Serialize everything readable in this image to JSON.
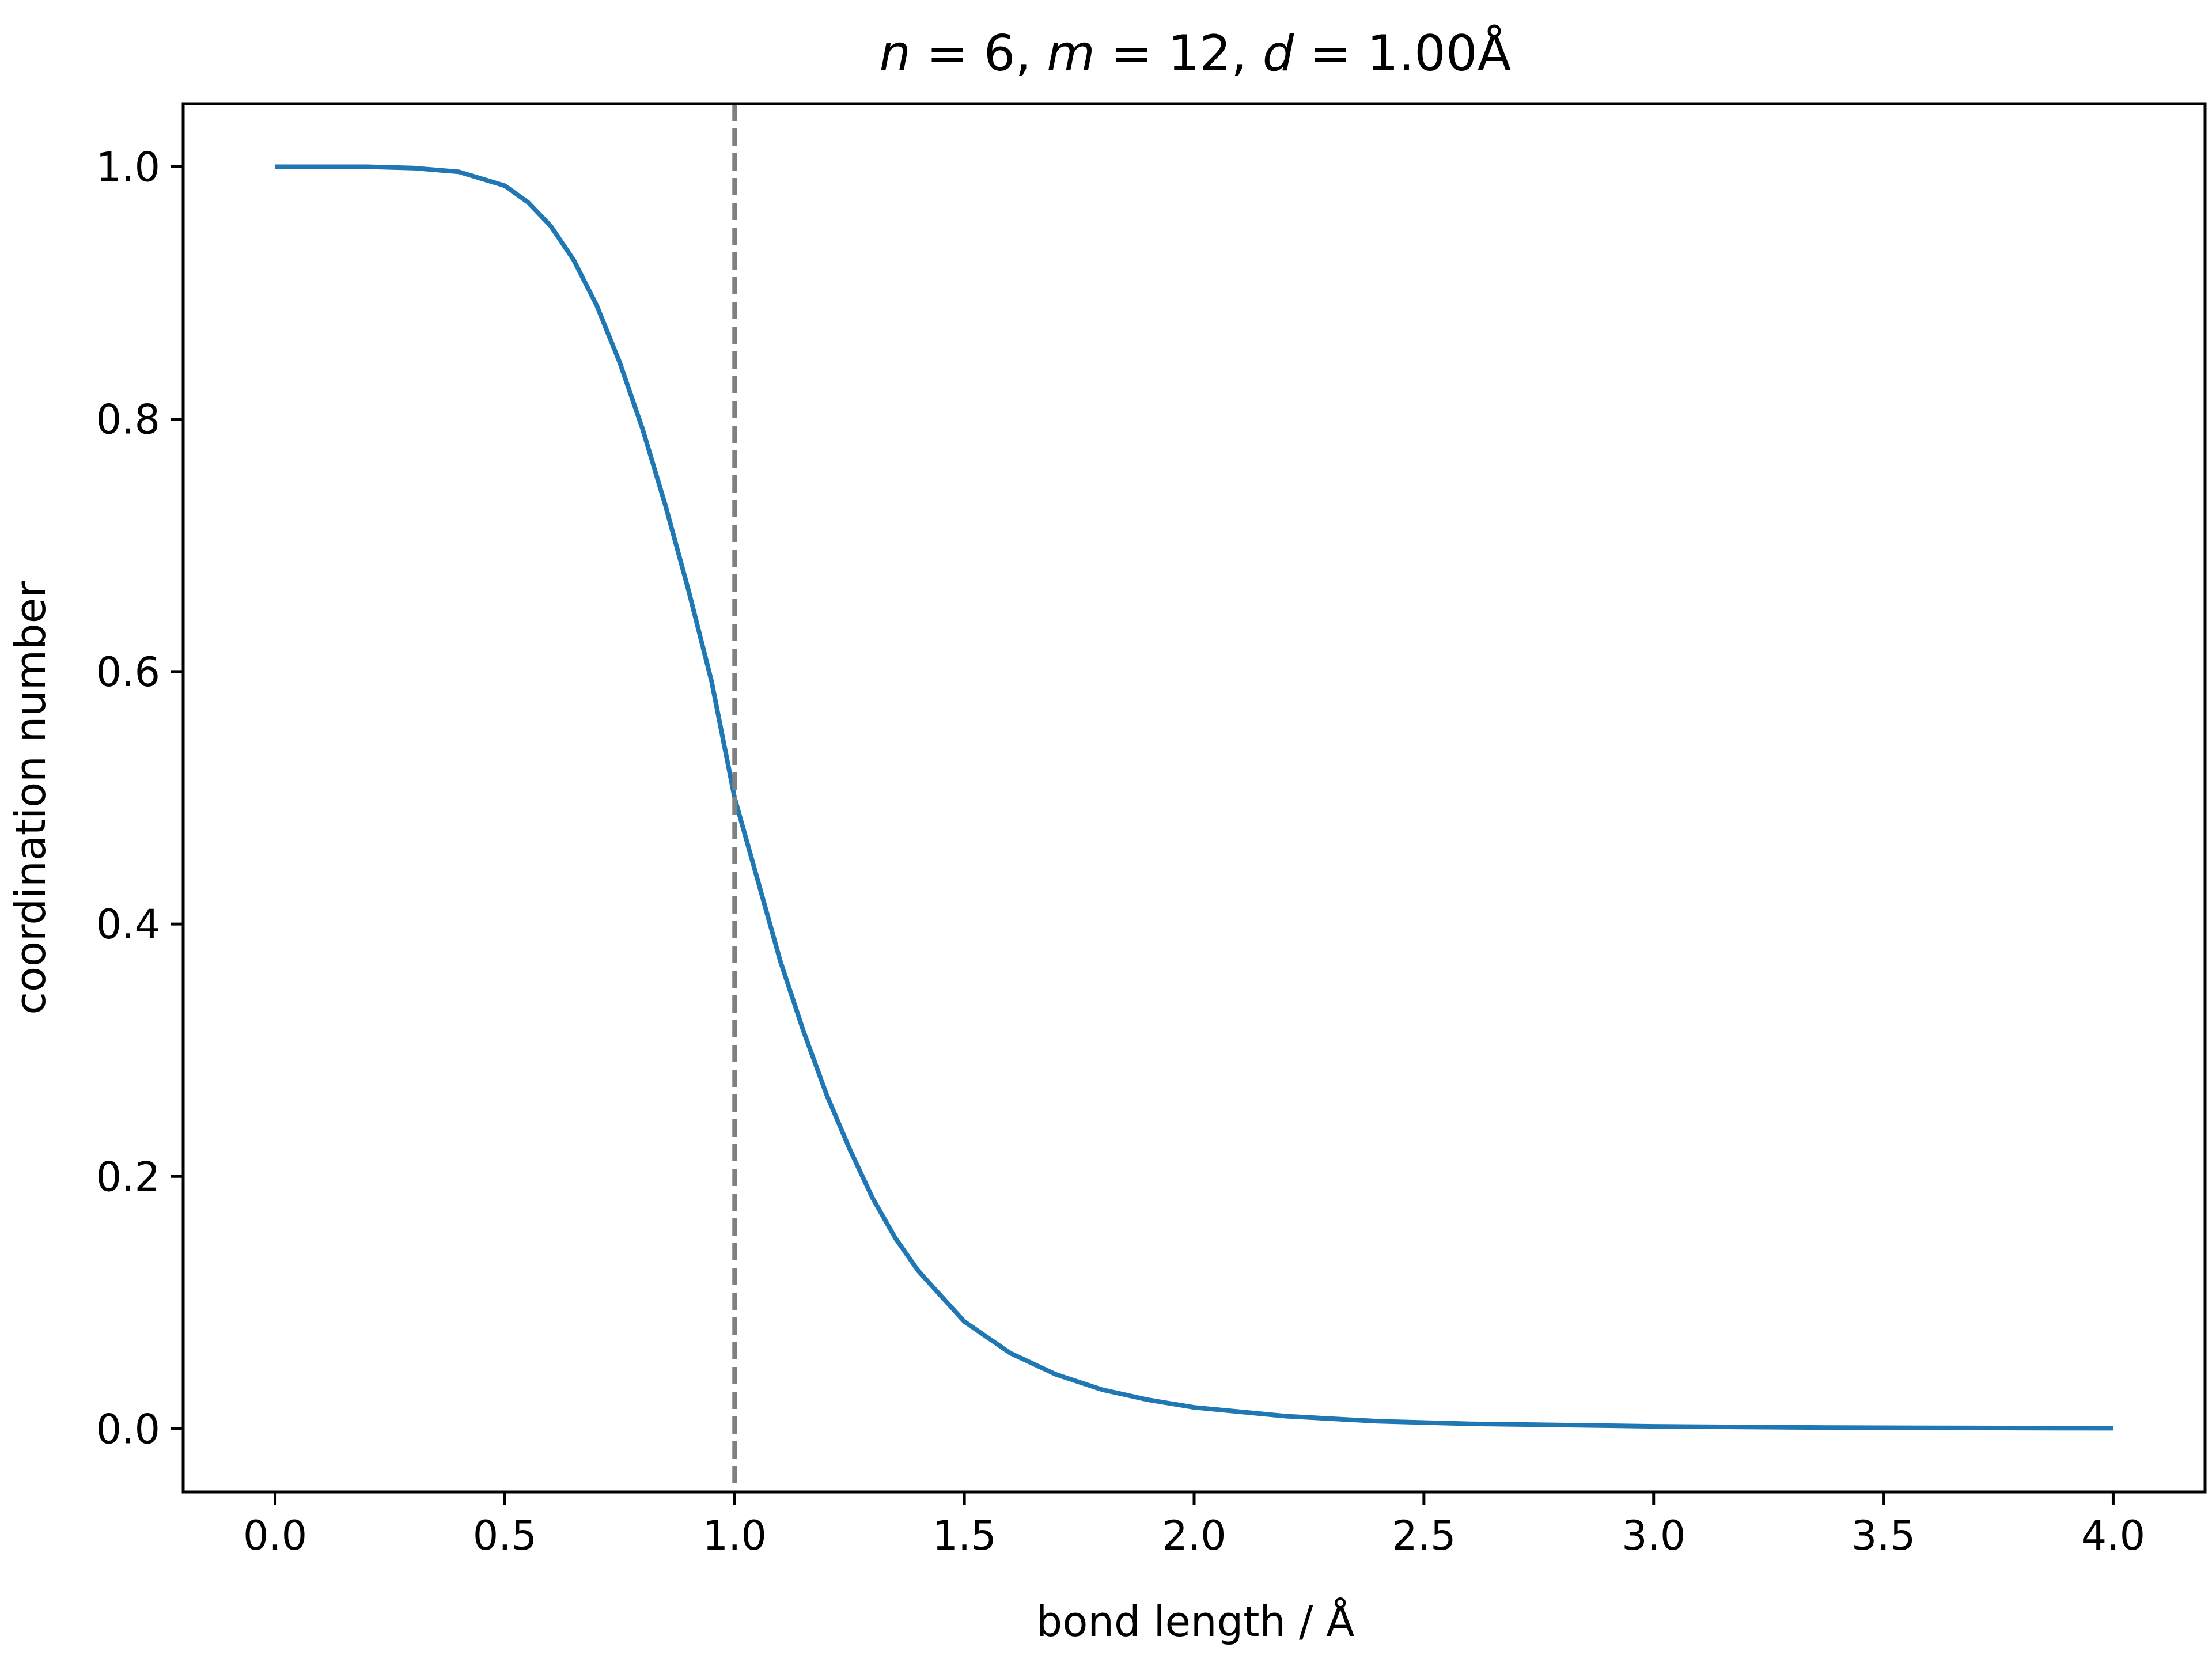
{
  "chart_data": {
    "type": "line",
    "title": {
      "parts": [
        {
          "text": "n",
          "italic": true
        },
        {
          "text": " = 6, ",
          "italic": false
        },
        {
          "text": "m",
          "italic": true
        },
        {
          "text": " = 12, ",
          "italic": false
        },
        {
          "text": "d",
          "italic": true
        },
        {
          "text": " = 1.00Å",
          "italic": false
        }
      ]
    },
    "xlabel": "bond length / Å",
    "ylabel": "coordination number",
    "xlim": [
      -0.2,
      4.2
    ],
    "ylim": [
      -0.05,
      1.05
    ],
    "xticks": [
      {
        "value": 0.0,
        "label": "0.0"
      },
      {
        "value": 0.5,
        "label": "0.5"
      },
      {
        "value": 1.0,
        "label": "1.0"
      },
      {
        "value": 1.5,
        "label": "1.5"
      },
      {
        "value": 2.0,
        "label": "2.0"
      },
      {
        "value": 2.5,
        "label": "2.5"
      },
      {
        "value": 3.0,
        "label": "3.0"
      },
      {
        "value": 3.5,
        "label": "3.5"
      },
      {
        "value": 4.0,
        "label": "4.0"
      }
    ],
    "yticks": [
      {
        "value": 0.0,
        "label": "0.0"
      },
      {
        "value": 0.2,
        "label": "0.2"
      },
      {
        "value": 0.4,
        "label": "0.4"
      },
      {
        "value": 0.6,
        "label": "0.6"
      },
      {
        "value": 0.8,
        "label": "0.8"
      },
      {
        "value": 1.0,
        "label": "1.0"
      }
    ],
    "grid": false,
    "series": [
      {
        "color": "#1f77b4",
        "x": [
          0.0,
          0.1,
          0.2,
          0.3,
          0.4,
          0.5,
          0.55,
          0.6,
          0.65,
          0.7,
          0.75,
          0.8,
          0.85,
          0.9,
          0.95,
          1.0,
          1.05,
          1.1,
          1.15,
          1.2,
          1.25,
          1.3,
          1.35,
          1.4,
          1.5,
          1.6,
          1.7,
          1.8,
          1.9,
          2.0,
          2.2,
          2.4,
          2.6,
          2.8,
          3.0,
          3.2,
          3.4,
          3.6,
          3.8,
          4.0
        ],
        "y": [
          1.0,
          1.0,
          1.0,
          0.999,
          0.996,
          0.985,
          0.972,
          0.953,
          0.926,
          0.89,
          0.845,
          0.792,
          0.731,
          0.664,
          0.592,
          0.5,
          0.435,
          0.37,
          0.315,
          0.265,
          0.222,
          0.183,
          0.151,
          0.125,
          0.085,
          0.06,
          0.043,
          0.031,
          0.023,
          0.017,
          0.01,
          0.006,
          0.004,
          0.003,
          0.002,
          0.0015,
          0.001,
          0.0008,
          0.0006,
          0.0005
        ]
      }
    ],
    "reference_line": {
      "axis": "x",
      "value": 1.0,
      "color": "#808080",
      "style": "dashed"
    }
  }
}
